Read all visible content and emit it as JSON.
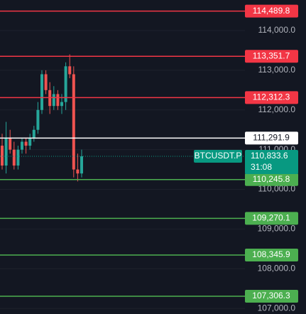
{
  "chart_data": {
    "type": "candlestick",
    "symbol": "BTCUSDT.P",
    "ylim": [
      106860,
      114770
    ],
    "yticks": [
      {
        "value": 114000,
        "label": "114,000.0"
      },
      {
        "value": 113000,
        "label": "113,000.0"
      },
      {
        "value": 112000,
        "label": "112,000.0"
      },
      {
        "value": 111000,
        "label": "111,000.0"
      },
      {
        "value": 110000,
        "label": "110,000.0"
      },
      {
        "value": 109000,
        "label": "109,000.0"
      },
      {
        "value": 108000,
        "label": "108,000.0"
      },
      {
        "value": 107000,
        "label": "107,000.0"
      }
    ],
    "up_color": "#26a69a",
    "down_color": "#ef5350",
    "open": [
      111100,
      110600,
      111300,
      111000,
      110600,
      111000,
      111200,
      111100,
      111300,
      111500,
      112000,
      112900,
      112500,
      112100,
      112400,
      112100,
      112200,
      113100,
      112900,
      110500,
      110400
    ],
    "high": [
      111400,
      111700,
      111500,
      111200,
      111100,
      111300,
      111300,
      111400,
      111600,
      112200,
      113000,
      113000,
      112700,
      112600,
      112500,
      112400,
      113200,
      113400,
      113100,
      110900,
      111000
    ],
    "low": [
      110500,
      110400,
      110900,
      110500,
      110500,
      110900,
      110900,
      111000,
      111200,
      111400,
      111900,
      112400,
      111900,
      112000,
      112000,
      111900,
      112000,
      112800,
      110300,
      110200,
      110300
    ],
    "close": [
      110600,
      111300,
      111000,
      110600,
      111000,
      111200,
      111100,
      111300,
      111500,
      112000,
      112900,
      112500,
      112100,
      112400,
      112100,
      112200,
      113100,
      112900,
      110500,
      110400,
      110833.6
    ],
    "levels": [
      {
        "value": 114489.8,
        "label": "114,489.8",
        "color": "#f23645"
      },
      {
        "value": 113351.7,
        "label": "113,351.7",
        "color": "#f23645"
      },
      {
        "value": 112312.3,
        "label": "112,312.3",
        "color": "#f23645"
      },
      {
        "value": 111291.9,
        "label": "111,291.9",
        "color": "#ffffff"
      },
      {
        "value": 110245.8,
        "label": "110,245.8",
        "color": "#4caf50"
      },
      {
        "value": 109270.1,
        "label": "109,270.1",
        "color": "#4caf50"
      },
      {
        "value": 108345.9,
        "label": "108,345.9",
        "color": "#4caf50"
      },
      {
        "value": 107306.3,
        "label": "107,306.3",
        "color": "#4caf50"
      }
    ],
    "last_price": {
      "value": 110833.6,
      "label": "110,833.6",
      "countdown": "31:08",
      "color": "#089981"
    }
  }
}
